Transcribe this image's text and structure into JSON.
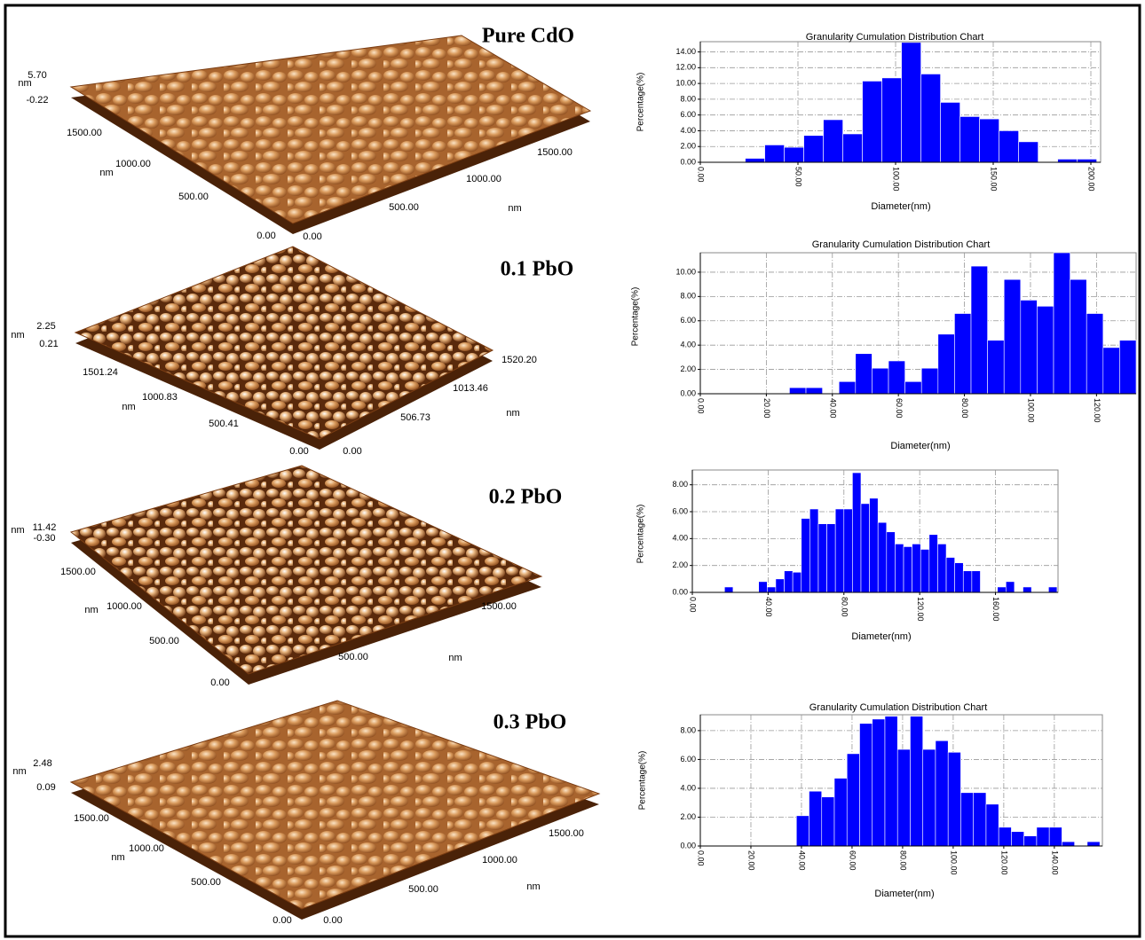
{
  "chart_data": [
    {
      "type": "histogram",
      "title": "Granularity Cumulation Distribution  Chart",
      "xlabel": "Diameter(nm)",
      "ylabel": "Percentage(%)",
      "color": "#0000ff",
      "grid": true,
      "bins": [
        23,
        33,
        43,
        53,
        63,
        73,
        83,
        93,
        103,
        113,
        123,
        133,
        143,
        153,
        163,
        173,
        183,
        193,
        203
      ],
      "values": [
        0.5,
        2.2,
        1.9,
        3.4,
        5.4,
        3.6,
        10.3,
        10.7,
        15.2,
        11.2,
        7.6,
        5.8,
        5.5,
        4.0,
        2.6,
        0,
        0.4,
        0.4
      ],
      "xlim": [
        0,
        205
      ],
      "ylim": [
        0,
        15.3
      ],
      "xticks": [
        {
          "value": 0,
          "label": "0.00"
        },
        {
          "value": 50,
          "label": "50.00"
        },
        {
          "value": 100,
          "label": "100.00"
        },
        {
          "value": 150,
          "label": "150.00"
        },
        {
          "value": 200,
          "label": "200.00"
        }
      ],
      "yticks": [
        {
          "value": 0,
          "label": "0.00"
        },
        {
          "value": 2,
          "label": "2.00"
        },
        {
          "value": 4,
          "label": "4.00"
        },
        {
          "value": 6,
          "label": "6.00"
        },
        {
          "value": 8,
          "label": "8.00"
        },
        {
          "value": 10,
          "label": "10.00"
        },
        {
          "value": 12,
          "label": "12.00"
        },
        {
          "value": 14,
          "label": "14.00"
        }
      ]
    },
    {
      "type": "histogram",
      "title": "Granularity Cumulation Distribution  Chart",
      "xlabel": "Diameter(nm)",
      "ylabel": "Percentage(%)",
      "color": "#0000ff",
      "grid": true,
      "bins": [
        27,
        32,
        37,
        42,
        47,
        52,
        57,
        62,
        67,
        72,
        77,
        82,
        87,
        92,
        97,
        102,
        107,
        112,
        117,
        122,
        127,
        132
      ],
      "values": [
        0.5,
        0.5,
        0,
        1.0,
        3.3,
        2.1,
        2.7,
        1.0,
        2.1,
        4.9,
        6.6,
        10.5,
        4.4,
        9.4,
        7.7,
        7.2,
        11.6,
        9.4,
        6.6,
        3.8,
        4.4
      ],
      "xlim": [
        0,
        132
      ],
      "ylim": [
        0,
        11.6
      ],
      "xticks": [
        {
          "value": 0,
          "label": "0.00"
        },
        {
          "value": 20,
          "label": "20.00"
        },
        {
          "value": 40,
          "label": "40.00"
        },
        {
          "value": 60,
          "label": "60.00"
        },
        {
          "value": 80,
          "label": "80.00"
        },
        {
          "value": 100,
          "label": "100.00"
        },
        {
          "value": 120,
          "label": "120.00"
        }
      ],
      "yticks": [
        {
          "value": 0,
          "label": "0.00"
        },
        {
          "value": 2,
          "label": "2.00"
        },
        {
          "value": 4,
          "label": "4.00"
        },
        {
          "value": 6,
          "label": "6.00"
        },
        {
          "value": 8,
          "label": "8.00"
        },
        {
          "value": 10,
          "label": "10.00"
        }
      ]
    },
    {
      "type": "histogram",
      "xlabel": "Diameter(nm)",
      "ylabel": "Percentage(%)",
      "color": "#0000ff",
      "grid": true,
      "bins": [
        17,
        21.5,
        26,
        30.5,
        35,
        39.5,
        44,
        48.5,
        53,
        57.5,
        62,
        66.5,
        71,
        75.5,
        80,
        84.5,
        89,
        93.5,
        98,
        102.5,
        107,
        111.5,
        116,
        120.5,
        125,
        129.5,
        134,
        138.5,
        143,
        147.5,
        152,
        156.5,
        161,
        165.5,
        170,
        174.5,
        179,
        183.5,
        188,
        192.5
      ],
      "values": [
        0.4,
        0,
        0,
        0,
        0.8,
        0.4,
        1.0,
        1.6,
        1.5,
        5.5,
        6.2,
        5.1,
        5.1,
        6.2,
        6.2,
        8.9,
        6.6,
        7.0,
        5.2,
        4.5,
        3.6,
        3.4,
        3.6,
        3.2,
        4.3,
        3.6,
        2.6,
        2.2,
        1.6,
        1.6,
        0,
        0,
        0.4,
        0.8,
        0,
        0.4,
        0,
        0,
        0.4
      ],
      "xlim": [
        0,
        193
      ],
      "ylim": [
        0,
        9.1
      ],
      "xticks": [
        {
          "value": 0,
          "label": "0.00"
        },
        {
          "value": 40,
          "label": "40.00"
        },
        {
          "value": 80,
          "label": "80.00"
        },
        {
          "value": 120,
          "label": "120.00"
        },
        {
          "value": 160,
          "label": "160.00"
        }
      ],
      "yticks": [
        {
          "value": 0,
          "label": "0.00"
        },
        {
          "value": 2,
          "label": "2.00"
        },
        {
          "value": 4,
          "label": "4.00"
        },
        {
          "value": 6,
          "label": "6.00"
        },
        {
          "value": 8,
          "label": "8.00"
        }
      ]
    },
    {
      "type": "histogram",
      "title": "Granularity Cumulation Distribution  Chart",
      "xlabel": "Diameter(nm)",
      "ylabel": "Percentage(%)",
      "color": "#0000ff",
      "grid": true,
      "bins": [
        38,
        43,
        48,
        53,
        58,
        63,
        68,
        73,
        78,
        83,
        88,
        93,
        98,
        103,
        108,
        113,
        118,
        123,
        128,
        133,
        138,
        143,
        148,
        153,
        158
      ],
      "values": [
        2.1,
        3.8,
        3.4,
        4.7,
        6.4,
        8.5,
        8.8,
        9.0,
        6.7,
        9.0,
        6.7,
        7.3,
        6.5,
        3.7,
        3.7,
        2.9,
        1.3,
        1.0,
        0.7,
        1.3,
        1.3,
        0.3,
        0,
        0.3
      ],
      "xlim": [
        0,
        159
      ],
      "ylim": [
        0,
        9.1
      ],
      "xticks": [
        {
          "value": 0,
          "label": "0.00"
        },
        {
          "value": 20,
          "label": "20.00"
        },
        {
          "value": 40,
          "label": "40.00"
        },
        {
          "value": 60,
          "label": "60.00"
        },
        {
          "value": 80,
          "label": "80.00"
        },
        {
          "value": 100,
          "label": "100.00"
        },
        {
          "value": 120,
          "label": "120.00"
        },
        {
          "value": 140,
          "label": "140.00"
        }
      ],
      "yticks": [
        {
          "value": 0,
          "label": "0.00"
        },
        {
          "value": 2,
          "label": "2.00"
        },
        {
          "value": 4,
          "label": "4.00"
        },
        {
          "value": 6,
          "label": "6.00"
        },
        {
          "value": 8,
          "label": "8.00"
        }
      ]
    }
  ],
  "afm_panels": [
    {
      "title": "Pure CdO",
      "z_labels": [
        "5.70",
        "-0.22"
      ],
      "z_unit": "nm",
      "depth_labels": [
        "1500.00",
        "1000.00",
        "500.00",
        "0.00"
      ],
      "depth_unit": "nm",
      "width_labels": [
        "0.00",
        "500.00",
        "1000.00",
        "1500.00"
      ],
      "width_unit": "nm"
    },
    {
      "title": "0.1 PbO",
      "z_labels": [
        "2.25",
        "0.21"
      ],
      "z_unit": "nm",
      "depth_labels": [
        "1501.24",
        "1000.83",
        "500.41",
        "0.00"
      ],
      "depth_unit": "nm",
      "width_labels": [
        "0.00",
        "506.73",
        "1013.46",
        "1520.20"
      ],
      "width_unit": "nm"
    },
    {
      "title": "0.2 PbO",
      "z_labels": [
        "11.42",
        "-0.30"
      ],
      "z_unit": "nm",
      "depth_labels": [
        "1500.00",
        "1000.00",
        "500.00",
        "0.00"
      ],
      "depth_unit": "nm",
      "width_labels": [
        "500.00",
        "1500.00"
      ],
      "width_unit": "nm"
    },
    {
      "title": "0.3 PbO",
      "z_labels": [
        "2.48",
        "0.09"
      ],
      "z_unit": "nm",
      "depth_labels": [
        "1500.00",
        "1000.00",
        "500.00",
        "0.00"
      ],
      "depth_unit": "nm",
      "width_labels": [
        "0.00",
        "500.00",
        "1000.00",
        "1500.00"
      ],
      "width_unit": "nm"
    }
  ]
}
